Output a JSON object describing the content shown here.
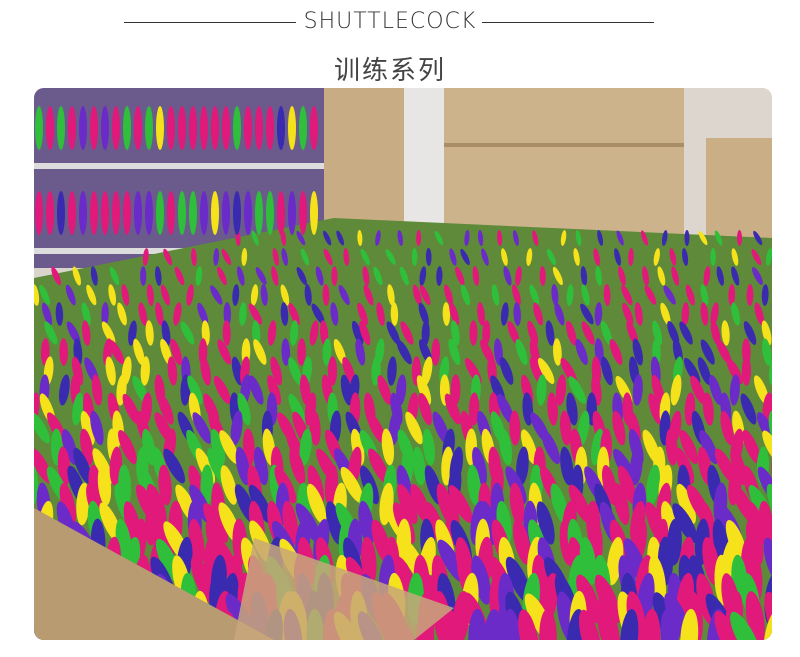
{
  "header": {
    "title_en": "SHUTTLECOCK",
    "title_cn": "训练系列"
  },
  "photo": {
    "subject": "shuttlecock-product-photo",
    "colors": [
      "#e0197a",
      "#6a2bc8",
      "#2fbf3a",
      "#f5e21a",
      "#c9a878"
    ]
  }
}
